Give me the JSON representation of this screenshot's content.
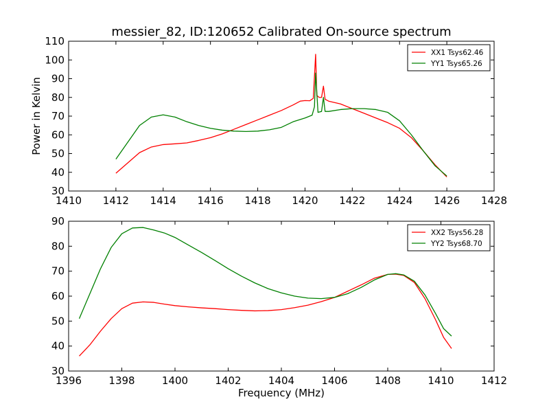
{
  "chart_data": [
    {
      "type": "line",
      "title": "messier_82, ID:120652 Calibrated On-source spectrum",
      "xlabel": "",
      "ylabel": "Power in Kelvin",
      "xlim": [
        1410,
        1428
      ],
      "ylim": [
        30,
        110
      ],
      "xticks": [
        1410,
        1412,
        1414,
        1416,
        1418,
        1420,
        1422,
        1424,
        1426,
        1428
      ],
      "yticks": [
        30,
        40,
        50,
        60,
        70,
        80,
        90,
        100,
        110
      ],
      "legend_position": "top-right",
      "grid": false,
      "series": [
        {
          "name": "XX1 Tsys62.46",
          "color": "#ff0000",
          "x": [
            1412,
            1412.5,
            1413,
            1413.5,
            1414,
            1414.5,
            1415,
            1415.5,
            1416,
            1416.5,
            1417,
            1417.5,
            1418,
            1418.5,
            1419,
            1419.5,
            1419.8,
            1420,
            1420.2,
            1420.35,
            1420.45,
            1420.5,
            1420.6,
            1420.7,
            1420.78,
            1420.85,
            1421,
            1421.5,
            1422,
            1422.5,
            1423,
            1423.5,
            1424,
            1424.5,
            1425,
            1425.5,
            1426
          ],
          "y": [
            39.5,
            45,
            50.5,
            53.5,
            54.8,
            55.2,
            55.7,
            57,
            58.5,
            60.5,
            63,
            65.5,
            68,
            70.5,
            73,
            76,
            78,
            78.3,
            78.2,
            79.5,
            103,
            81,
            80,
            80,
            86,
            79,
            78,
            76.5,
            74,
            71.5,
            69,
            66.5,
            63.5,
            58.5,
            51.5,
            44,
            37.5
          ]
        },
        {
          "name": "YY1 Tsys65.26",
          "color": "#008000",
          "x": [
            1412,
            1412.5,
            1413,
            1413.5,
            1414,
            1414.5,
            1415,
            1415.5,
            1416,
            1416.5,
            1417,
            1417.5,
            1418,
            1418.5,
            1419,
            1419.5,
            1420,
            1420.3,
            1420.4,
            1420.45,
            1420.55,
            1420.7,
            1420.78,
            1420.85,
            1421,
            1421.5,
            1422,
            1422.5,
            1423,
            1423.5,
            1424,
            1424.5,
            1425,
            1425.5,
            1426
          ],
          "y": [
            47,
            56,
            65,
            69.5,
            70.7,
            69.5,
            67,
            65,
            63.5,
            62.5,
            62,
            61.8,
            62,
            62.7,
            64,
            67,
            69,
            70.5,
            75,
            93,
            72,
            72.5,
            80,
            72.5,
            72.5,
            73.5,
            74,
            74,
            73.5,
            72,
            67.5,
            60,
            51.5,
            43.5,
            38
          ]
        }
      ]
    },
    {
      "type": "line",
      "title": "",
      "xlabel": "Frequency (MHz)",
      "ylabel": "",
      "xlim": [
        1396,
        1412
      ],
      "ylim": [
        30,
        90
      ],
      "xticks": [
        1396,
        1398,
        1400,
        1402,
        1404,
        1406,
        1408,
        1410,
        1412
      ],
      "yticks": [
        30,
        40,
        50,
        60,
        70,
        80,
        90
      ],
      "legend_position": "top-right",
      "grid": false,
      "series": [
        {
          "name": "XX2 Tsys56.28",
          "color": "#ff0000",
          "x": [
            1396.4,
            1396.8,
            1397.2,
            1397.6,
            1398,
            1398.4,
            1398.8,
            1399.2,
            1399.6,
            1400,
            1400.5,
            1401,
            1401.5,
            1402,
            1402.5,
            1403,
            1403.5,
            1404,
            1404.5,
            1405,
            1405.5,
            1406,
            1406.5,
            1407,
            1407.5,
            1408,
            1408.3,
            1408.6,
            1409,
            1409.4,
            1409.8,
            1410.1,
            1410.4
          ],
          "y": [
            36,
            40.5,
            46,
            51,
            55,
            57.2,
            57.7,
            57.5,
            56.8,
            56.2,
            55.7,
            55.3,
            55,
            54.6,
            54.3,
            54.1,
            54.2,
            54.6,
            55.4,
            56.4,
            57.8,
            59.5,
            62,
            64.5,
            67.2,
            68.7,
            68.8,
            68.3,
            65.5,
            59,
            50.5,
            43.5,
            39
          ]
        },
        {
          "name": "YY2 Tsys68.70",
          "color": "#008000",
          "x": [
            1396.4,
            1396.8,
            1397.2,
            1397.6,
            1398,
            1398.4,
            1398.8,
            1399.2,
            1399.6,
            1400,
            1400.5,
            1401,
            1401.5,
            1402,
            1402.5,
            1403,
            1403.5,
            1404,
            1404.5,
            1405,
            1405.5,
            1406,
            1406.5,
            1407,
            1407.5,
            1408,
            1408.3,
            1408.6,
            1409,
            1409.4,
            1409.8,
            1410.1,
            1410.4
          ],
          "y": [
            51,
            61,
            71,
            79.5,
            85,
            87.3,
            87.5,
            86.5,
            85.3,
            83.5,
            80.5,
            77.5,
            74.3,
            71,
            68,
            65.3,
            63,
            61.3,
            60,
            59.2,
            59,
            59.5,
            61,
            63.5,
            66.5,
            68.7,
            69,
            68.5,
            66,
            60.5,
            53,
            47,
            44
          ]
        }
      ]
    }
  ]
}
